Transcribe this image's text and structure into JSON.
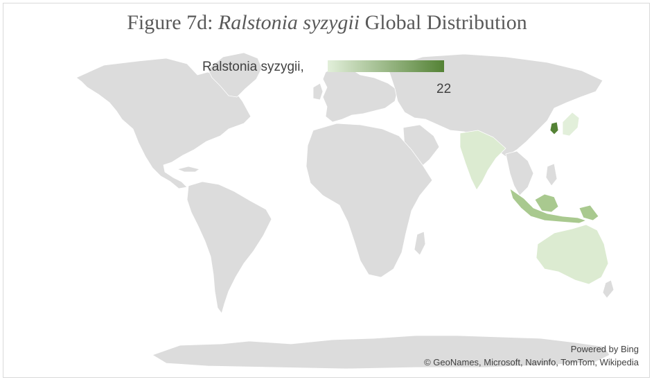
{
  "title": {
    "prefix": "Figure 7d: ",
    "species": "Ralstonia syzygii",
    "suffix": " Global Distribution"
  },
  "legend": {
    "label": "Ralstonia syzygii,",
    "max_value": "22",
    "color_min": "#e2efda",
    "color_max": "#548235"
  },
  "credits": {
    "powered_by": "Powered by Bing",
    "attribution": "© GeoNames, Microsoft, Navinfo, TomTom, Wikipedia"
  },
  "colors": {
    "land": "#dcdcdc",
    "border": "#ffffff",
    "frame": "#d9d9d9"
  },
  "regions": [
    {
      "name": "South Korea",
      "level": 1.0
    },
    {
      "name": "Indonesia",
      "level": 0.45
    },
    {
      "name": "Papua New Guinea",
      "level": 0.4
    },
    {
      "name": "India",
      "level": 0.15
    },
    {
      "name": "Australia",
      "level": 0.15
    },
    {
      "name": "Japan",
      "level": 0.12
    }
  ]
}
